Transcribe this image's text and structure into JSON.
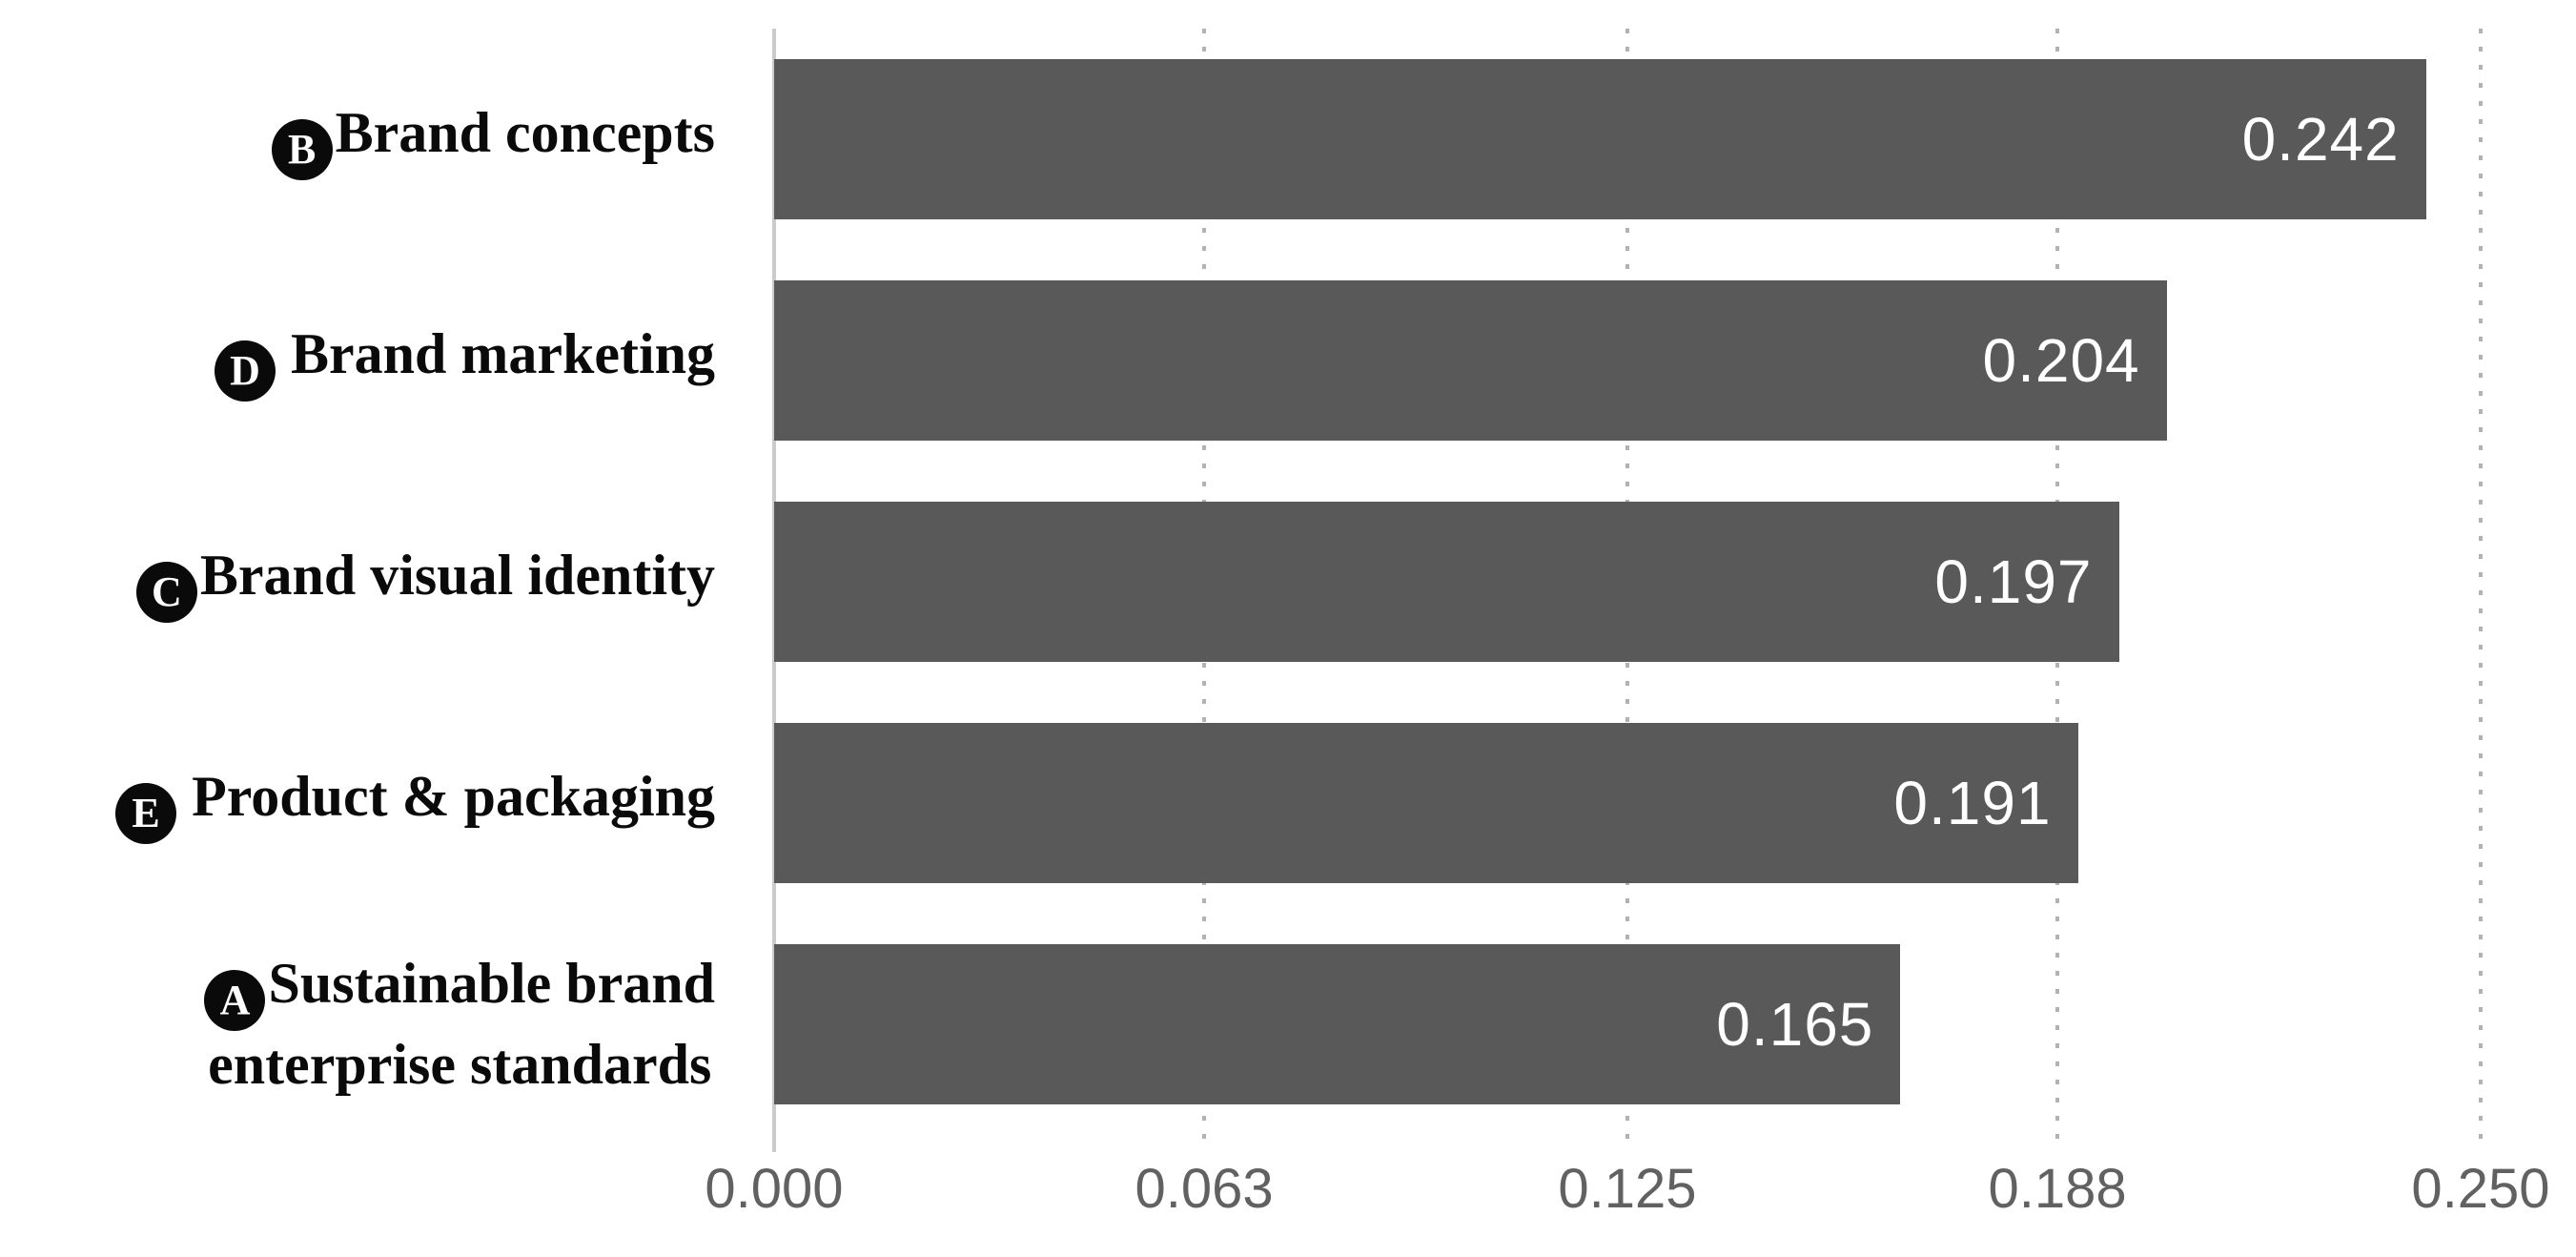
{
  "chart_data": {
    "type": "bar",
    "orientation": "horizontal",
    "title": "",
    "xlabel": "",
    "ylabel": "",
    "xlim": [
      0,
      0.25
    ],
    "grid": "vertical-dotted-gridlines",
    "legend": "none",
    "x_ticks": [
      {
        "label": "0.000",
        "value": 0.0
      },
      {
        "label": "0.063",
        "value": 0.063
      },
      {
        "label": "0.125",
        "value": 0.125
      },
      {
        "label": "0.188",
        "value": 0.188
      },
      {
        "label": "0.250",
        "value": 0.25
      }
    ],
    "categories": [
      "B Brand concepts",
      "D Brand marketing",
      "C Brand visual identity",
      "E Product & packaging",
      "A Sustainable brand enterprise standards"
    ],
    "values": [
      0.242,
      0.204,
      0.197,
      0.191,
      0.165
    ],
    "rows": [
      {
        "letter": "B",
        "letter_gap": false,
        "label_lines": [
          "Brand concepts"
        ],
        "value": 0.242,
        "value_label": "0.242"
      },
      {
        "letter": "D",
        "letter_gap": true,
        "label_lines": [
          "Brand marketing"
        ],
        "value": 0.204,
        "value_label": "0.204"
      },
      {
        "letter": "C",
        "letter_gap": false,
        "label_lines": [
          "Brand visual identity"
        ],
        "value": 0.197,
        "value_label": "0.197"
      },
      {
        "letter": "E",
        "letter_gap": true,
        "label_lines": [
          "Product & packaging"
        ],
        "value": 0.191,
        "value_label": "0.191"
      },
      {
        "letter": "A",
        "letter_gap": false,
        "label_lines": [
          "Sustainable brand",
          "enterprise standards"
        ],
        "value": 0.165,
        "value_label": "0.165"
      }
    ]
  },
  "colors": {
    "bar_fill": "#595959",
    "bar_value_text": "#ffffff",
    "axis_line": "#cbcbcb",
    "gridline": "#b2b2b2",
    "category_text": "#0a0a0a",
    "badge_background": "#0a0a0a",
    "badge_letter": "#ffffff",
    "tick_text": "#616161",
    "background": "#ffffff"
  }
}
